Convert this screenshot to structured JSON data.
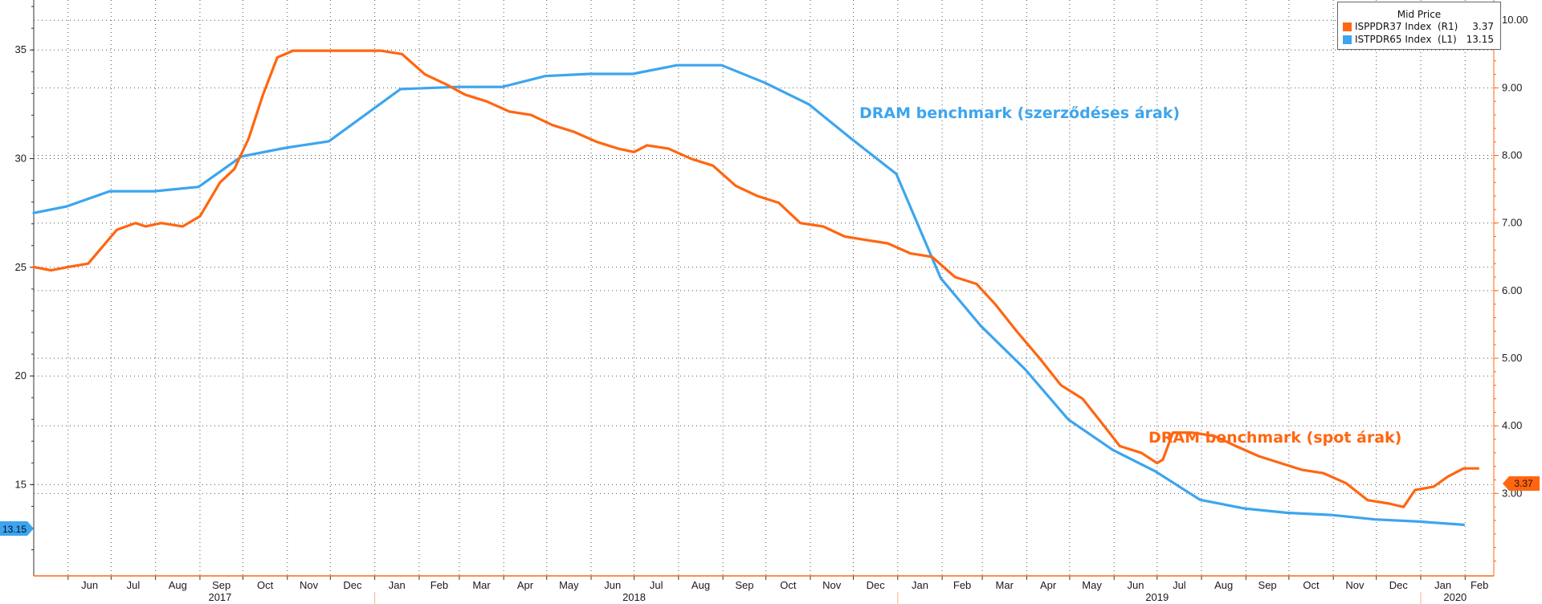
{
  "chart_data": {
    "type": "line",
    "legend": {
      "title": "Mid Price",
      "position": "top-right",
      "entries": [
        {
          "name": "ISPPDR37 Index  (R1)",
          "value": "3.37",
          "color": "#ff6611"
        },
        {
          "name": "ISTPDR65 Index  (L1)",
          "value": "13.15",
          "color": "#3da5ee"
        }
      ]
    },
    "annotations": {
      "contract": "DRAM benchmark (szerződéses árak)",
      "spot": "DRAM benchmark (spot árak)"
    },
    "last_value_tags": {
      "left": "13.15",
      "right": "3.37"
    },
    "y_left": {
      "range": [
        10.8,
        37.3
      ],
      "ticks": [
        "35",
        "30",
        "25",
        "20",
        "15"
      ],
      "tick_values": [
        35,
        30,
        25,
        20,
        15
      ]
    },
    "y_right": {
      "range": [
        1.78,
        10.3
      ],
      "ticks": [
        "10.00",
        "9.00",
        "8.00",
        "7.00",
        "6.00",
        "5.00",
        "4.00",
        "3.00"
      ],
      "tick_values": [
        10,
        9,
        8,
        7,
        6,
        5,
        4,
        3
      ]
    },
    "x_axis": {
      "range": [
        "2017-05-08",
        "2020-02-21"
      ],
      "months": [
        "Jun",
        "Jul",
        "Aug",
        "Sep",
        "Oct",
        "Nov",
        "Dec",
        "Jan",
        "Feb",
        "Mar",
        "Apr",
        "May",
        "Jun",
        "Jul",
        "Aug",
        "Sep",
        "Oct",
        "Nov",
        "Dec",
        "Jan",
        "Feb",
        "Mar",
        "Apr",
        "May",
        "Jun",
        "Jul",
        "Aug",
        "Sep",
        "Oct",
        "Nov",
        "Dec",
        "Jan",
        "Feb"
      ],
      "month_dates": [
        "2017-06-01",
        "2017-07-01",
        "2017-08-01",
        "2017-09-01",
        "2017-10-01",
        "2017-11-01",
        "2017-12-01",
        "2018-01-01",
        "2018-02-01",
        "2018-03-01",
        "2018-04-01",
        "2018-05-01",
        "2018-06-01",
        "2018-07-01",
        "2018-08-01",
        "2018-09-01",
        "2018-10-01",
        "2018-11-01",
        "2018-12-01",
        "2019-01-01",
        "2019-02-01",
        "2019-03-01",
        "2019-04-01",
        "2019-05-01",
        "2019-06-01",
        "2019-07-01",
        "2019-08-01",
        "2019-09-01",
        "2019-10-01",
        "2019-11-01",
        "2019-12-01",
        "2020-01-01",
        "2020-02-01"
      ],
      "years": [
        {
          "label": "2017",
          "date": "2017-09-15"
        },
        {
          "label": "2018",
          "date": "2018-07-01"
        },
        {
          "label": "2019",
          "date": "2019-07-01"
        },
        {
          "label": "2020",
          "date": "2020-01-25"
        }
      ],
      "year_separators": [
        "2018-01-01",
        "2019-01-01",
        "2020-01-01"
      ]
    },
    "grid": true,
    "series": [
      {
        "name": "ISTPDR65 Index  (L1)",
        "axis": "left",
        "color": "#3da5ee",
        "points": [
          [
            "2017-05-08",
            27.5
          ],
          [
            "2017-05-31",
            27.8
          ],
          [
            "2017-06-30",
            28.5
          ],
          [
            "2017-07-31",
            28.5
          ],
          [
            "2017-08-31",
            28.7
          ],
          [
            "2017-09-30",
            30.1
          ],
          [
            "2017-10-31",
            30.5
          ],
          [
            "2017-11-30",
            30.8
          ],
          [
            "2018-01-19",
            33.2
          ],
          [
            "2018-02-28",
            33.3
          ],
          [
            "2018-03-31",
            33.3
          ],
          [
            "2018-04-30",
            33.8
          ],
          [
            "2018-05-31",
            33.9
          ],
          [
            "2018-06-30",
            33.9
          ],
          [
            "2018-07-31",
            34.3
          ],
          [
            "2018-08-31",
            34.3
          ],
          [
            "2018-09-30",
            33.5
          ],
          [
            "2018-10-31",
            32.5
          ],
          [
            "2018-11-30",
            30.9
          ],
          [
            "2018-12-31",
            29.3
          ],
          [
            "2019-01-31",
            24.5
          ],
          [
            "2019-02-28",
            22.3
          ],
          [
            "2019-03-31",
            20.3
          ],
          [
            "2019-04-30",
            18.0
          ],
          [
            "2019-05-31",
            16.6
          ],
          [
            "2019-06-30",
            15.6
          ],
          [
            "2019-07-31",
            14.3
          ],
          [
            "2019-08-31",
            13.9
          ],
          [
            "2019-09-30",
            13.7
          ],
          [
            "2019-10-31",
            13.6
          ],
          [
            "2019-11-30",
            13.4
          ],
          [
            "2019-12-31",
            13.3
          ],
          [
            "2020-01-31",
            13.15
          ]
        ]
      },
      {
        "name": "ISPPDR37 Index  (R1)",
        "axis": "right",
        "color": "#ff6611",
        "points": [
          [
            "2017-05-08",
            6.35
          ],
          [
            "2017-05-20",
            6.3
          ],
          [
            "2017-06-01",
            6.35
          ],
          [
            "2017-06-15",
            6.4
          ],
          [
            "2017-06-25",
            6.65
          ],
          [
            "2017-07-05",
            6.9
          ],
          [
            "2017-07-18",
            7.0
          ],
          [
            "2017-07-25",
            6.95
          ],
          [
            "2017-08-05",
            7.0
          ],
          [
            "2017-08-20",
            6.95
          ],
          [
            "2017-09-01",
            7.1
          ],
          [
            "2017-09-15",
            7.6
          ],
          [
            "2017-09-25",
            7.8
          ],
          [
            "2017-10-05",
            8.25
          ],
          [
            "2017-10-15",
            8.9
          ],
          [
            "2017-10-25",
            9.45
          ],
          [
            "2017-11-05",
            9.55
          ],
          [
            "2017-11-20",
            9.55
          ],
          [
            "2017-12-05",
            9.55
          ],
          [
            "2017-12-20",
            9.55
          ],
          [
            "2018-01-05",
            9.55
          ],
          [
            "2018-01-20",
            9.5
          ],
          [
            "2018-02-05",
            9.2
          ],
          [
            "2018-02-20",
            9.05
          ],
          [
            "2018-03-05",
            8.9
          ],
          [
            "2018-03-20",
            8.8
          ],
          [
            "2018-04-05",
            8.65
          ],
          [
            "2018-04-20",
            8.6
          ],
          [
            "2018-05-05",
            8.45
          ],
          [
            "2018-05-20",
            8.35
          ],
          [
            "2018-06-05",
            8.2
          ],
          [
            "2018-06-20",
            8.1
          ],
          [
            "2018-07-01",
            8.05
          ],
          [
            "2018-07-10",
            8.15
          ],
          [
            "2018-07-25",
            8.1
          ],
          [
            "2018-08-10",
            7.95
          ],
          [
            "2018-08-25",
            7.85
          ],
          [
            "2018-09-10",
            7.55
          ],
          [
            "2018-09-25",
            7.4
          ],
          [
            "2018-10-10",
            7.3
          ],
          [
            "2018-10-25",
            7.0
          ],
          [
            "2018-11-10",
            6.95
          ],
          [
            "2018-11-25",
            6.8
          ],
          [
            "2018-12-10",
            6.75
          ],
          [
            "2018-12-25",
            6.7
          ],
          [
            "2019-01-10",
            6.55
          ],
          [
            "2019-01-25",
            6.5
          ],
          [
            "2019-02-10",
            6.2
          ],
          [
            "2019-02-25",
            6.1
          ],
          [
            "2019-03-10",
            5.8
          ],
          [
            "2019-03-25",
            5.4
          ],
          [
            "2019-04-10",
            5.0
          ],
          [
            "2019-04-25",
            4.6
          ],
          [
            "2019-05-10",
            4.4
          ],
          [
            "2019-05-25",
            4.0
          ],
          [
            "2019-06-05",
            3.7
          ],
          [
            "2019-06-20",
            3.6
          ],
          [
            "2019-07-01",
            3.45
          ],
          [
            "2019-07-05",
            3.5
          ],
          [
            "2019-07-12",
            3.9
          ],
          [
            "2019-07-25",
            3.9
          ],
          [
            "2019-08-10",
            3.85
          ],
          [
            "2019-08-25",
            3.7
          ],
          [
            "2019-09-10",
            3.55
          ],
          [
            "2019-09-25",
            3.45
          ],
          [
            "2019-10-10",
            3.35
          ],
          [
            "2019-10-25",
            3.3
          ],
          [
            "2019-11-10",
            3.15
          ],
          [
            "2019-11-25",
            2.9
          ],
          [
            "2019-12-10",
            2.85
          ],
          [
            "2019-12-20",
            2.8
          ],
          [
            "2019-12-28",
            3.05
          ],
          [
            "2020-01-10",
            3.1
          ],
          [
            "2020-01-20",
            3.25
          ],
          [
            "2020-01-31",
            3.37
          ],
          [
            "2020-02-10",
            3.37
          ]
        ]
      }
    ]
  }
}
